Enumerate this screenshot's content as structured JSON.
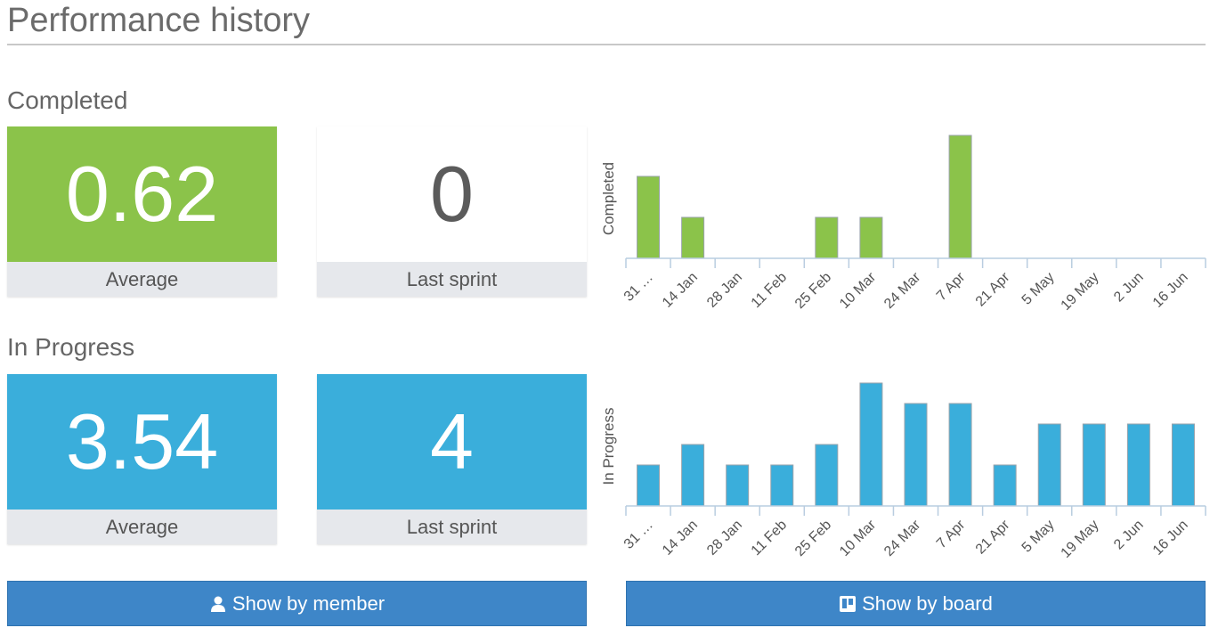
{
  "page": {
    "title": "Performance history"
  },
  "completed": {
    "title": "Completed",
    "average": {
      "value": "0.62",
      "label": "Average",
      "color": "#8bc34a"
    },
    "last_sprint": {
      "value": "0",
      "label": "Last sprint",
      "color": "#ffffff"
    }
  },
  "in_progress": {
    "title": "In Progress",
    "average": {
      "value": "3.54",
      "label": "Average",
      "color": "#3aaedb"
    },
    "last_sprint": {
      "value": "4",
      "label": "Last sprint",
      "color": "#3aaedb"
    }
  },
  "buttons": {
    "by_member": {
      "label": "Show by member",
      "icon": "user-icon"
    },
    "by_board": {
      "label": "Show by board",
      "icon": "board-icon"
    }
  },
  "chart_data": [
    {
      "type": "bar",
      "ylabel": "Completed",
      "categories": [
        "31 …",
        "14 Jan",
        "28 Jan",
        "11 Feb",
        "25 Feb",
        "10 Mar",
        "24 Mar",
        "7 Apr",
        "21 Apr",
        "5 May",
        "19 May",
        "2 Jun",
        "16 Jun"
      ],
      "values": [
        2,
        1,
        0,
        0,
        1,
        1,
        0,
        3,
        0,
        0,
        0,
        0,
        0
      ],
      "ylim": [
        0,
        3
      ],
      "color": "#8bc34a",
      "grid": false
    },
    {
      "type": "bar",
      "ylabel": "In Progress",
      "categories": [
        "31 …",
        "14 Jan",
        "28 Jan",
        "11 Feb",
        "25 Feb",
        "10 Mar",
        "24 Mar",
        "7 Apr",
        "21 Apr",
        "5 May",
        "19 May",
        "2 Jun",
        "16 Jun"
      ],
      "values": [
        2,
        3,
        2,
        2,
        3,
        6,
        5,
        5,
        2,
        4,
        4,
        4,
        4
      ],
      "ylim": [
        0,
        6
      ],
      "color": "#3aaedb",
      "grid": false
    }
  ]
}
